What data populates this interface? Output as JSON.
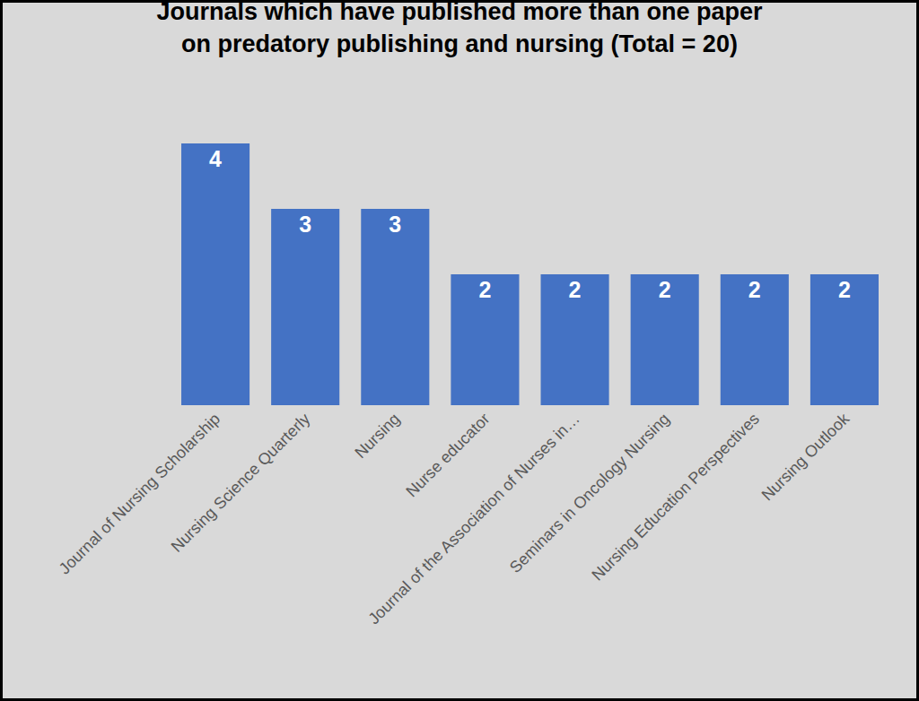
{
  "chart_data": {
    "type": "bar",
    "title": "Journals which have published more than one paper\non predatory publishing and nursing (Total = 20)",
    "categories": [
      "Journal of Nursing Scholarship",
      "Nursing Science Quarterly",
      "Nursing",
      "Nurse educator",
      "Journal of the Association of Nurses in…",
      "Seminars in Oncology Nursing",
      "Nursing Education Perspectives",
      "Nursing Outlook"
    ],
    "values": [
      4,
      3,
      3,
      2,
      2,
      2,
      2,
      2
    ],
    "color": "#4472c4",
    "ylim": [
      0,
      4
    ],
    "grid": false,
    "data_labels": true,
    "tick_labels": "x"
  }
}
